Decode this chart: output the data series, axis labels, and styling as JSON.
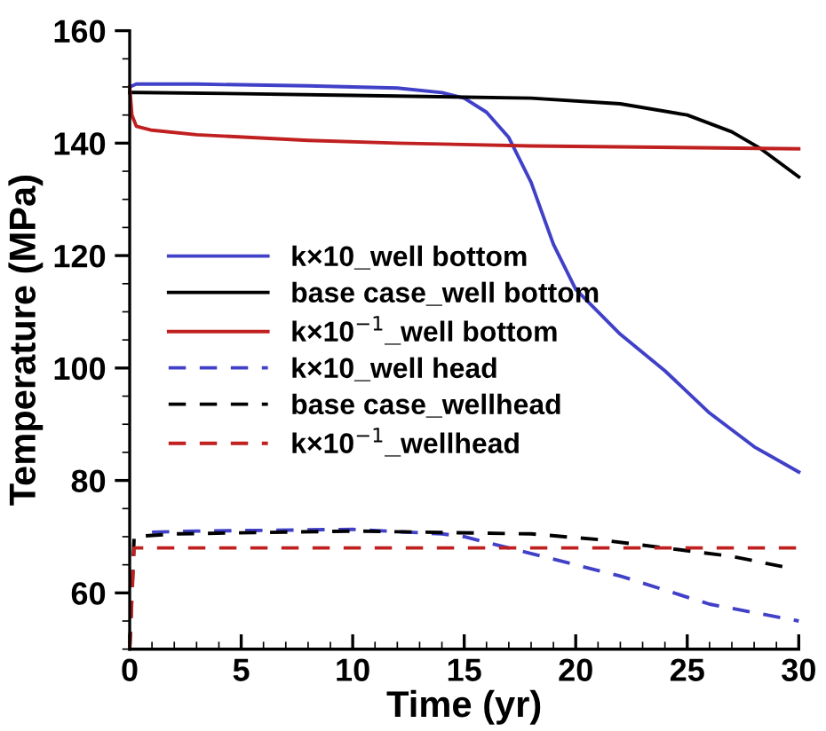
{
  "chart_data": {
    "type": "line",
    "xlabel": "Time (yr)",
    "ylabel": "Temperature (MPa)",
    "xlim": [
      0,
      30
    ],
    "ylim": [
      50,
      160
    ],
    "xticks": [
      0,
      5,
      10,
      15,
      20,
      25,
      30
    ],
    "yticks": [
      60,
      80,
      100,
      120,
      140,
      160
    ],
    "grid": false,
    "legend": "left",
    "marker": "none",
    "series": [
      {
        "name": "k×10_well bottom",
        "color": "#4040c8",
        "line_style": "solid",
        "x": [
          0,
          0.3,
          3,
          8,
          12,
          14,
          15,
          16,
          17,
          18,
          19,
          20,
          22,
          24,
          26,
          28,
          30
        ],
        "values": [
          150,
          150.5,
          150.5,
          150.2,
          149.8,
          149,
          148,
          145.5,
          141,
          133,
          122,
          114,
          106,
          99.5,
          92,
          86,
          81.5
        ]
      },
      {
        "name": "base case_well bottom",
        "color": "#000000",
        "line_style": "solid",
        "x": [
          0,
          0.3,
          5,
          10,
          18,
          22,
          25,
          27,
          28.3,
          30
        ],
        "values": [
          149,
          149,
          148.8,
          148.5,
          148,
          147,
          145,
          142,
          139,
          134
        ]
      },
      {
        "name": "k×10$^{−1}$_well bottom",
        "color": "#c02020",
        "line_style": "solid",
        "x": [
          0,
          0.1,
          0.3,
          1,
          3,
          8,
          12,
          18,
          30
        ],
        "values": [
          150,
          145,
          143,
          142.3,
          141.5,
          140.5,
          140,
          139.5,
          139
        ]
      },
      {
        "name": "k×10_well head",
        "color": "#4040c8",
        "line_style": "dashed",
        "x": [
          1,
          3,
          10,
          14,
          15,
          17,
          20,
          22,
          26,
          30
        ],
        "values": [
          70.8,
          71,
          71.3,
          70.5,
          70,
          68,
          65,
          63,
          58,
          55
        ]
      },
      {
        "name": "base case_wellhead",
        "color": "#000000",
        "line_style": "dashed",
        "x": [
          0,
          0.2,
          2,
          10,
          18,
          21,
          24,
          27,
          29.5
        ],
        "values": [
          50,
          70,
          70.5,
          71,
          70.5,
          69.5,
          68,
          66.5,
          64.5
        ]
      },
      {
        "name": "k×10$^{−1}$_wellhead",
        "color": "#c02020",
        "line_style": "dashed",
        "x": [
          0,
          0.2,
          5,
          30
        ],
        "values": [
          50,
          68,
          68,
          68
        ]
      }
    ]
  }
}
